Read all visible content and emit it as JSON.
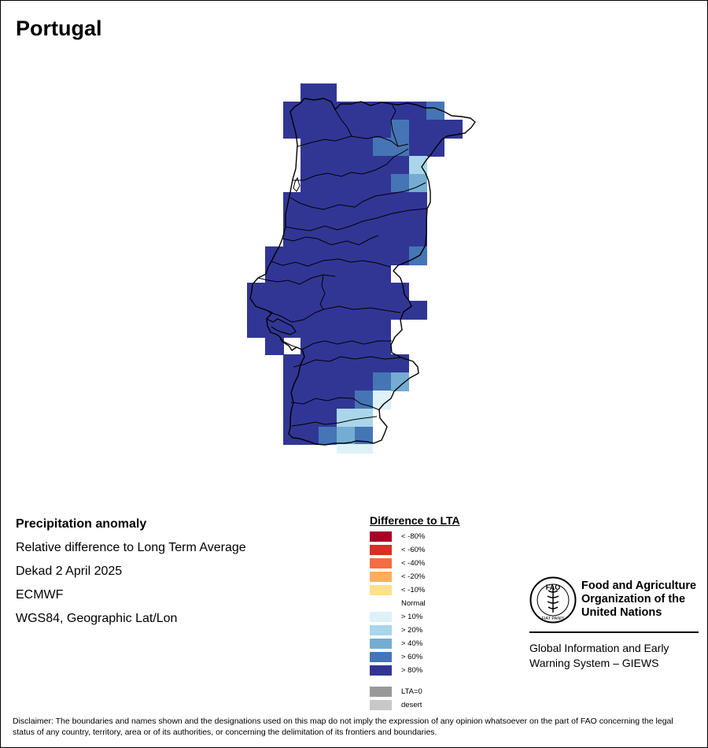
{
  "map_title": "Portugal",
  "info": {
    "product": "Precipitation anomaly",
    "description": "Relative difference to Long Term Average",
    "period": "Dekad 2 April 2025",
    "source": "ECMWF",
    "projection": "WGS84, Geographic Lat/Lon"
  },
  "legend": {
    "title": "Difference to LTA",
    "classes": [
      {
        "label": "< -80%",
        "color": "#a50026"
      },
      {
        "label": "< -60%",
        "color": "#d73027"
      },
      {
        "label": "< -40%",
        "color": "#f46d43"
      },
      {
        "label": "< -20%",
        "color": "#fdae61"
      },
      {
        "label": "< -10%",
        "color": "#fee08b"
      },
      {
        "label": "Normal",
        "color": "#ffffff"
      },
      {
        "label": "> 10%",
        "color": "#ddf1f8"
      },
      {
        "label": "> 20%",
        "color": "#a9d6ea"
      },
      {
        "label": "> 40%",
        "color": "#74add1"
      },
      {
        "label": "> 60%",
        "color": "#4575b4"
      },
      {
        "label": "> 80%",
        "color": "#313695"
      }
    ],
    "extra": [
      {
        "label": "LTA=0",
        "color": "#999999"
      },
      {
        "label": "desert",
        "color": "#c8c8c8"
      }
    ]
  },
  "org": {
    "name": "Food and Agriculture\nOrganization of the\nUnited Nations",
    "logo_letters": "FAO",
    "logo_motto": "FIAT PANIS",
    "system": "Global Information and Early\nWarning System – GIEWS"
  },
  "disclaimer": "Disclaimer: The boundaries and names shown and the designations used on this map do not imply the expression of any opinion whatsoever on the part of FAO concerning the legal status of any country, territory, area or of its authorities, or concerning the delimitation of its frontiers and boundaries."
}
